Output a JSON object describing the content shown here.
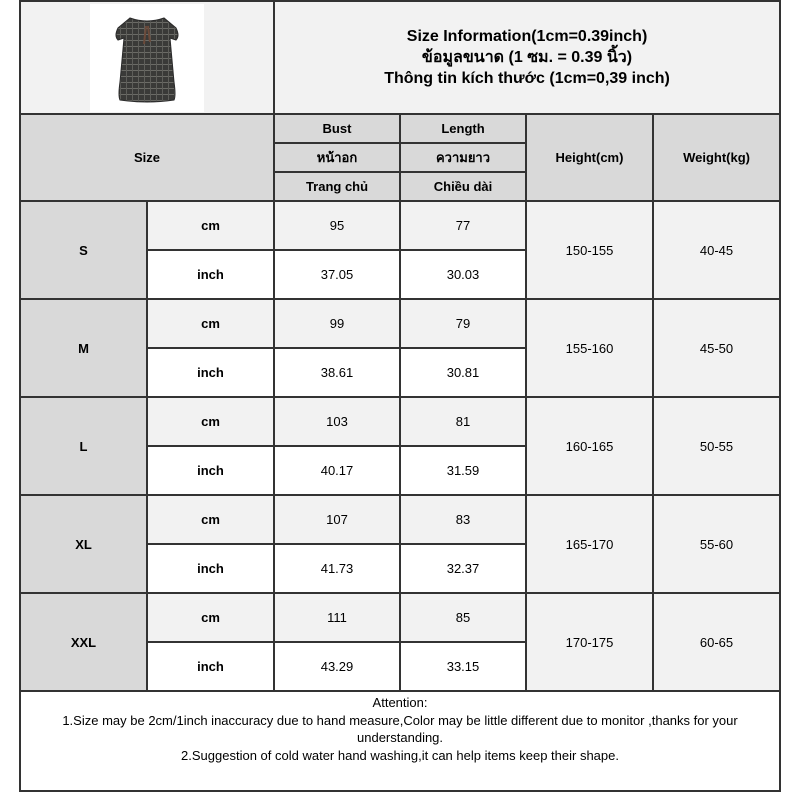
{
  "product_image": {
    "alt": "plaid short-sleeve dress",
    "icon": "dress-icon"
  },
  "info": {
    "line1": "Size Information(1cm=0.39inch)",
    "line2": "ข้อมูลขนาด (1 ซม. = 0.39 นิ้ว)",
    "line3": "Thông tin kích thước (1cm=0,39 inch)"
  },
  "header": {
    "size": "Size",
    "bust": [
      "Bust",
      "หน้าอก",
      "Trang chủ"
    ],
    "length": [
      "Length",
      "ความยาว",
      "Chiều dài"
    ],
    "height": "Height(cm)",
    "weight": "Weight(kg)"
  },
  "rows": [
    {
      "size": "S",
      "cm": {
        "unit": "cm",
        "bust": "95",
        "length": "77"
      },
      "inch": {
        "unit": "inch",
        "bust": "37.05",
        "length": "30.03"
      },
      "height": "150-155",
      "weight": "40-45"
    },
    {
      "size": "M",
      "cm": {
        "unit": "cm",
        "bust": "99",
        "length": "79"
      },
      "inch": {
        "unit": "inch",
        "bust": "38.61",
        "length": "30.81"
      },
      "height": "155-160",
      "weight": "45-50"
    },
    {
      "size": "L",
      "cm": {
        "unit": "cm",
        "bust": "103",
        "length": "81"
      },
      "inch": {
        "unit": "inch",
        "bust": "40.17",
        "length": "31.59"
      },
      "height": "160-165",
      "weight": "50-55"
    },
    {
      "size": "XL",
      "cm": {
        "unit": "cm",
        "bust": "107",
        "length": "83"
      },
      "inch": {
        "unit": "inch",
        "bust": "41.73",
        "length": "32.37"
      },
      "height": "165-170",
      "weight": "55-60"
    },
    {
      "size": "XXL",
      "cm": {
        "unit": "cm",
        "bust": "111",
        "length": "85"
      },
      "inch": {
        "unit": "inch",
        "bust": "43.29",
        "length": "33.15"
      },
      "height": "170-175",
      "weight": "60-65"
    }
  ],
  "footer": {
    "title": "Attention:",
    "note1": "1.Size may be 2cm/1inch inaccuracy due to hand measure,Color may be little different due to monitor ,thanks for your understanding.",
    "note2": "2.Suggestion of cold water hand washing,it can help items keep their shape."
  },
  "colors": {
    "header_bg": "#d9d9d9",
    "cell_bg": "#f2f2f2",
    "border": "#333333"
  }
}
